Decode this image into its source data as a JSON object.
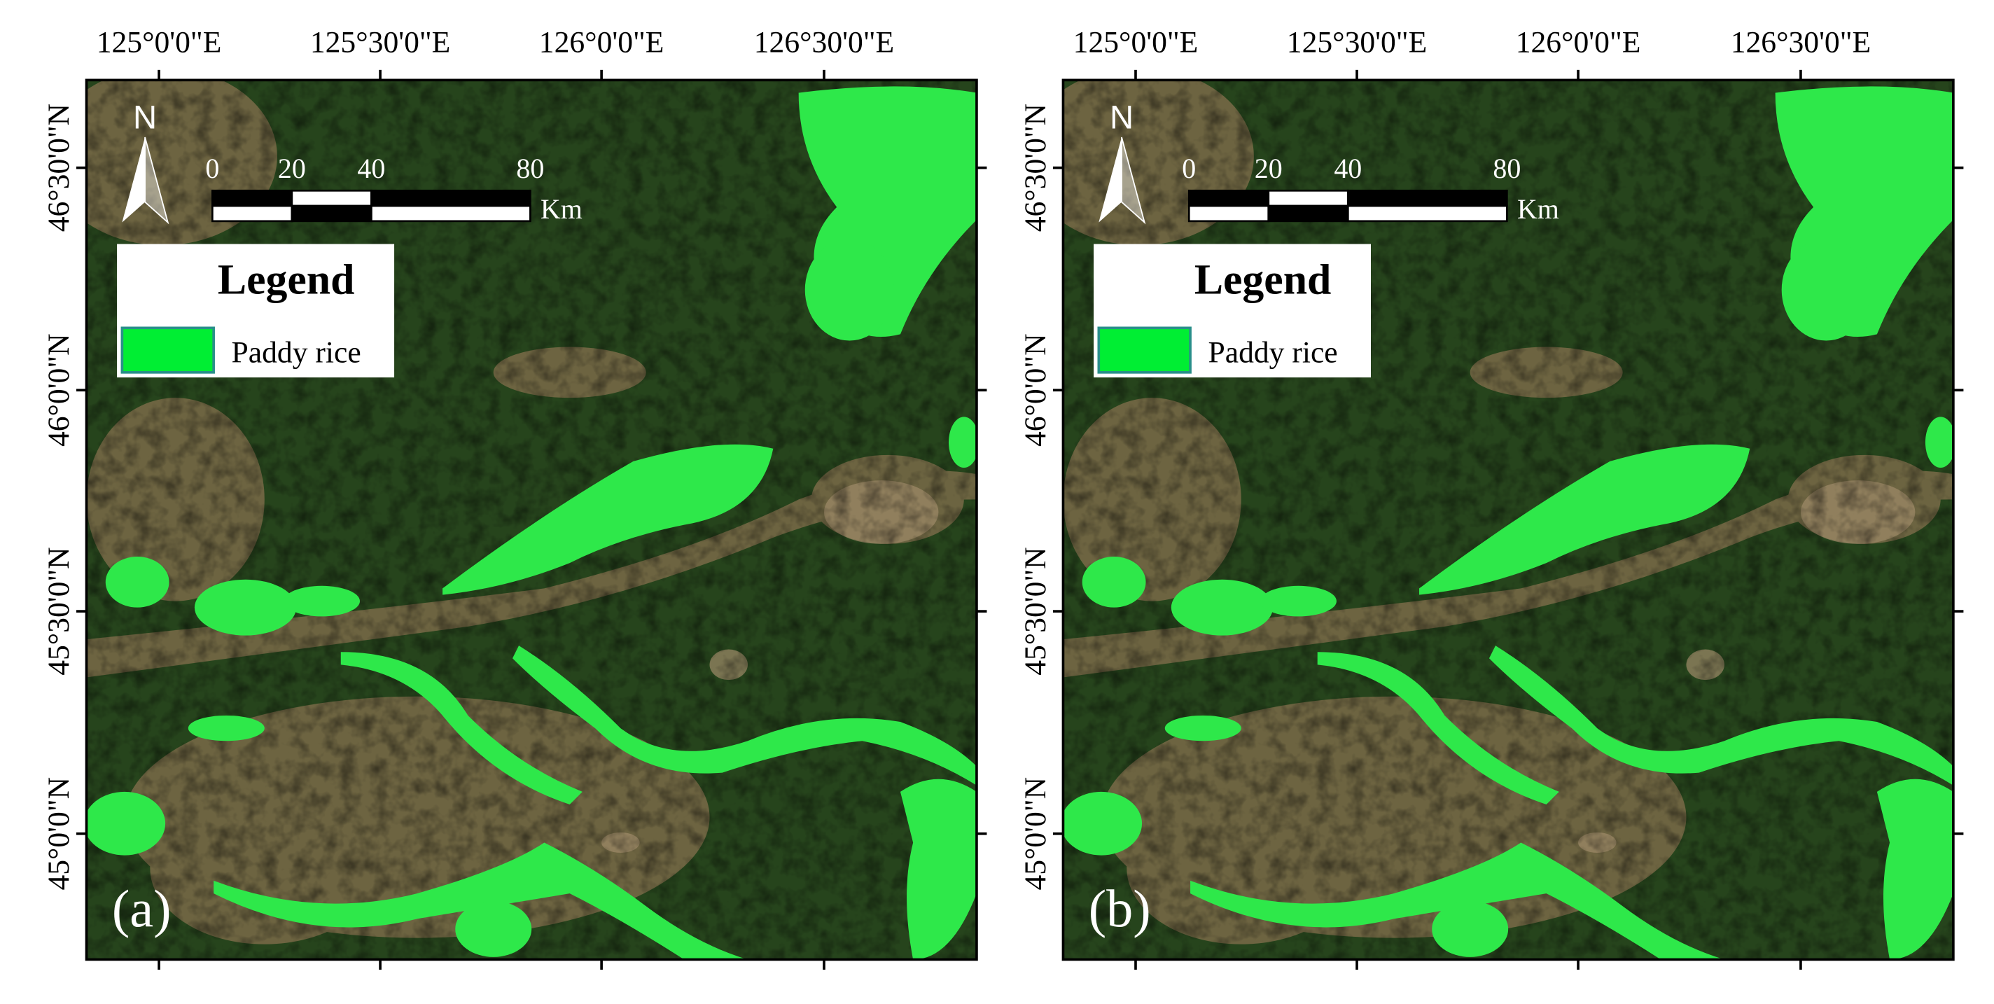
{
  "panels": [
    {
      "label": "(a)"
    },
    {
      "label": "(b)"
    }
  ],
  "longitude_labels": [
    "125°0'0\"E",
    "125°30'0\"E",
    "126°0'0\"E",
    "126°30'0\"E"
  ],
  "latitude_labels": [
    "46°30'0\"N",
    "46°0'0\"N",
    "45°30'0\"N",
    "45°0'0\"N"
  ],
  "north": "N",
  "scale_bar": {
    "ticks": [
      0,
      20,
      40,
      80
    ],
    "unit": "Km"
  },
  "legend": {
    "title": "Legend",
    "items": [
      {
        "label": "Paddy rice"
      }
    ]
  }
}
